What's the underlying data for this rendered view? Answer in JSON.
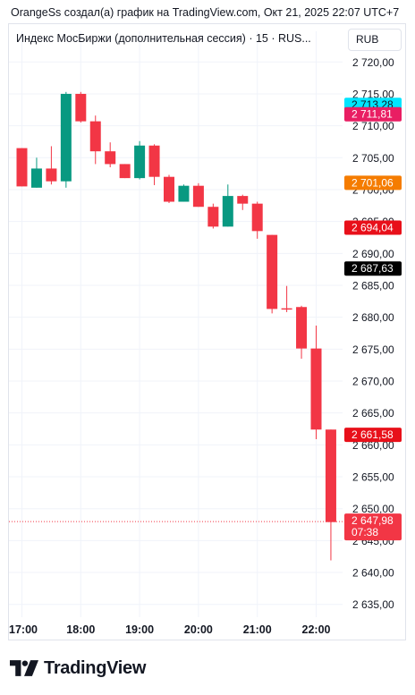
{
  "header": {
    "text": "OrangeSs создал(а) график на TradingView.com, Окт 21, 2025 22:07 UTC+7"
  },
  "legend": {
    "text": "Индекс МосБиржи (дополнительная сессия) · 15 · RUS..."
  },
  "currency": {
    "label": "RUB"
  },
  "brand": {
    "name": "TradingView",
    "icon": "tradingview-logo-icon"
  },
  "colors": {
    "up": "#089981",
    "down": "#f23645",
    "grid": "#f0f3fa"
  },
  "chart_data": {
    "type": "candlestick",
    "interval": "15",
    "ylim": [
      2633,
      2722
    ],
    "y_ticks": [
      2720,
      2715,
      2710,
      2705,
      2700,
      2695,
      2690,
      2685,
      2680,
      2675,
      2670,
      2665,
      2660,
      2655,
      2650,
      2645,
      2640,
      2635
    ],
    "y_tick_labels": [
      "2 720,00",
      "2 715,00",
      "2 710,00",
      "2 705,00",
      "2 700,00",
      "2 695,00",
      "2 690,00",
      "2 685,00",
      "2 680,00",
      "2 675,00",
      "2 670,00",
      "2 665,00",
      "2 660,00",
      "2 655,00",
      "2 650,00",
      "2 645,00",
      "2 640,00",
      "2 635,00"
    ],
    "x_ticks": [
      {
        "index": 0,
        "label": "17:00"
      },
      {
        "index": 4,
        "label": "18:00"
      },
      {
        "index": 8,
        "label": "19:00"
      },
      {
        "index": 12,
        "label": "20:00"
      },
      {
        "index": 16,
        "label": "21:00"
      },
      {
        "index": 20,
        "label": "22:00"
      }
    ],
    "candles": [
      {
        "o": 2706.5,
        "h": 2706.5,
        "l": 2700.5,
        "c": 2700.5
      },
      {
        "o": 2700.3,
        "h": 2705.0,
        "l": 2700.3,
        "c": 2703.3
      },
      {
        "o": 2703.3,
        "h": 2706.8,
        "l": 2700.8,
        "c": 2701.3
      },
      {
        "o": 2701.3,
        "h": 2715.3,
        "l": 2700.3,
        "c": 2715.0
      },
      {
        "o": 2715.0,
        "h": 2715.3,
        "l": 2710.5,
        "c": 2710.7
      },
      {
        "o": 2710.7,
        "h": 2711.6,
        "l": 2704.0,
        "c": 2706.0
      },
      {
        "o": 2706.0,
        "h": 2707.4,
        "l": 2703.5,
        "c": 2704.0
      },
      {
        "o": 2704.0,
        "h": 2704.0,
        "l": 2701.8,
        "c": 2701.8
      },
      {
        "o": 2701.8,
        "h": 2707.6,
        "l": 2701.6,
        "c": 2706.9
      },
      {
        "o": 2706.9,
        "h": 2707.1,
        "l": 2700.7,
        "c": 2702.0
      },
      {
        "o": 2702.0,
        "h": 2702.3,
        "l": 2697.9,
        "c": 2698.1
      },
      {
        "o": 2698.1,
        "h": 2700.8,
        "l": 2698.1,
        "c": 2700.6
      },
      {
        "o": 2700.6,
        "h": 2701.0,
        "l": 2697.3,
        "c": 2697.3
      },
      {
        "o": 2697.3,
        "h": 2697.8,
        "l": 2693.9,
        "c": 2694.2
      },
      {
        "o": 2694.2,
        "h": 2700.8,
        "l": 2694.2,
        "c": 2699.0
      },
      {
        "o": 2699.0,
        "h": 2699.2,
        "l": 2696.8,
        "c": 2697.8
      },
      {
        "o": 2697.8,
        "h": 2698.1,
        "l": 2692.3,
        "c": 2693.5
      },
      {
        "o": 2692.9,
        "h": 2692.9,
        "l": 2680.6,
        "c": 2681.3
      },
      {
        "o": 2681.4,
        "h": 2684.9,
        "l": 2680.8,
        "c": 2681.2
      },
      {
        "o": 2681.6,
        "h": 2681.8,
        "l": 2673.5,
        "c": 2675.1
      },
      {
        "o": 2675.1,
        "h": 2678.7,
        "l": 2660.9,
        "c": 2662.4
      },
      {
        "o": 2662.4,
        "h": 2662.4,
        "l": 2641.9,
        "c": 2647.9
      }
    ],
    "price_labels": [
      {
        "value": 2713.28,
        "text": "2 713,28",
        "bg": "#00e5ff",
        "fg": "#131722"
      },
      {
        "value": 2711.81,
        "text": "2 711,81",
        "bg": "#e91e63",
        "fg": "#ffffff"
      },
      {
        "value": 2701.06,
        "text": "2 701,06",
        "bg": "#f57c00",
        "fg": "#ffffff"
      },
      {
        "value": 2694.04,
        "text": "2 694,04",
        "bg": "#e8101a",
        "fg": "#ffffff"
      },
      {
        "value": 2687.63,
        "text": "2 687,63",
        "bg": "#000000",
        "fg": "#ffffff"
      },
      {
        "value": 2661.58,
        "text": "2 661,58",
        "bg": "#e8101a",
        "fg": "#ffffff"
      }
    ],
    "last_price": {
      "value": 2647.98,
      "text": "2 647,98",
      "countdown": "07:38",
      "bg": "#f23645",
      "fg": "#ffffff"
    }
  }
}
